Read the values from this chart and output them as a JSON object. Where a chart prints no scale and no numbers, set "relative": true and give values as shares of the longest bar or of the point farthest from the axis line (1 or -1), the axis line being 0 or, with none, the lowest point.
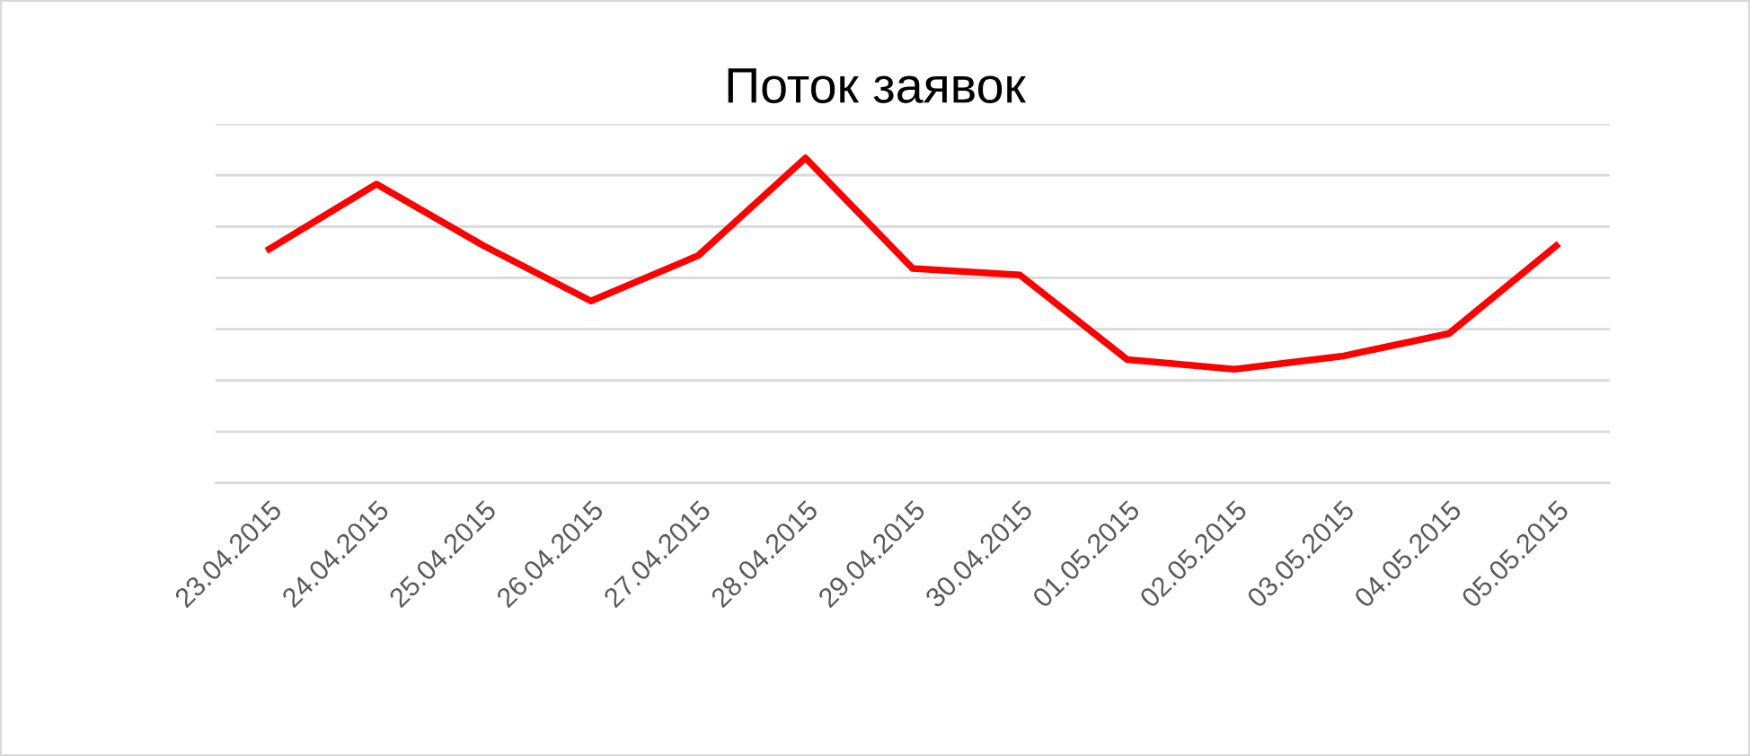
{
  "chart_data": {
    "type": "line",
    "title": "Поток заявок",
    "categories": [
      "23.04.2015",
      "24.04.2015",
      "25.04.2015",
      "26.04.2015",
      "27.04.2015",
      "28.04.2015",
      "29.04.2015",
      "30.04.2015",
      "01.05.2015",
      "02.05.2015",
      "03.05.2015",
      "04.05.2015",
      "05.05.2015"
    ],
    "series": [
      {
        "color": "#ff0000",
        "values": [
          0.72,
          0.92,
          0.73,
          0.56,
          0.7,
          1,
          0.66,
          0.64,
          0.38,
          0.35,
          0.39,
          0.46,
          0.73
        ]
      }
    ],
    "relative": true,
    "grid": "y",
    "marker": "none",
    "line_style": "solid"
  }
}
